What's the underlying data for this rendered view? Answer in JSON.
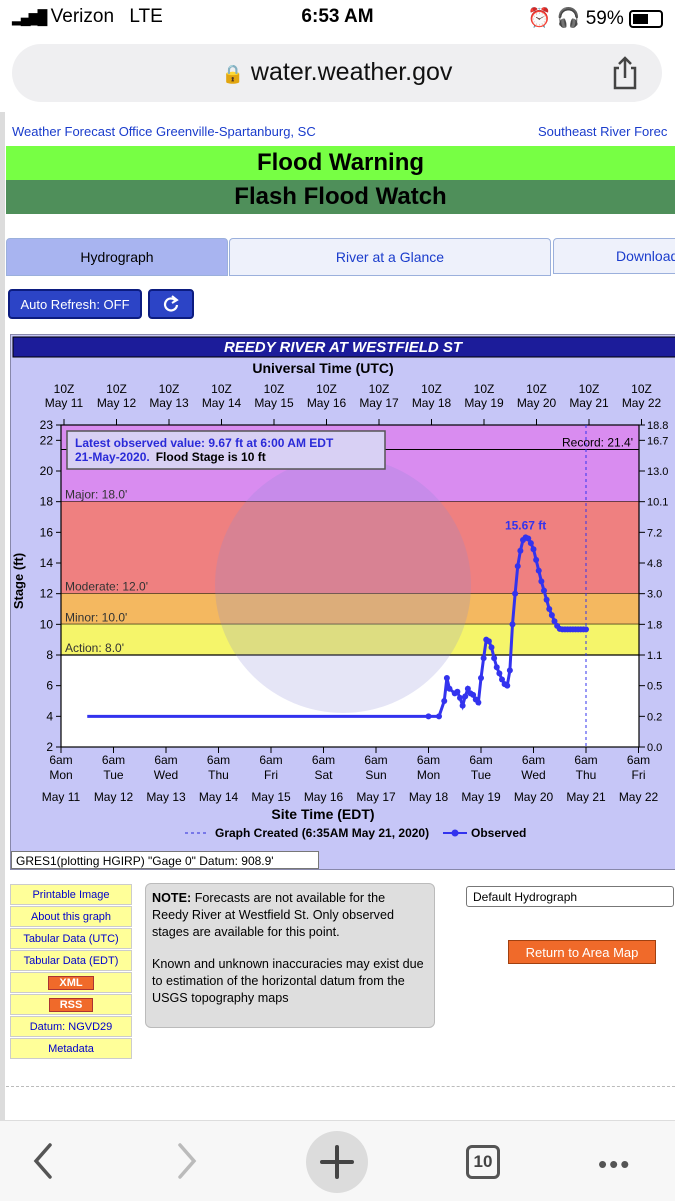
{
  "status_bar": {
    "carrier": "Verizon",
    "network": "LTE",
    "time": "6:53 AM",
    "battery": "59%"
  },
  "browser": {
    "url": "water.weather.gov",
    "tabs_count": "10"
  },
  "header": {
    "office_link": "Weather Forecast Office Greenville-Spartanburg, SC",
    "rfc_link": "Southeast River Forec"
  },
  "banners": [
    {
      "text": "Flood Warning",
      "color": "#77ff44"
    },
    {
      "text": "Flash Flood Watch",
      "color": "#4f8f5a"
    }
  ],
  "tabs": [
    {
      "label": "Hydrograph",
      "active": true
    },
    {
      "label": "River at a Glance",
      "active": false
    },
    {
      "label": "Download",
      "active": false
    }
  ],
  "controls": {
    "auto_refresh": "Auto Refresh: OFF"
  },
  "sidebar_links": [
    "Printable Image",
    "About this graph",
    "Tabular Data (UTC)",
    "Tabular Data (EDT)",
    "XML",
    "RSS",
    "Datum: NGVD29",
    "Metadata"
  ],
  "note": {
    "bold": "NOTE:",
    "p1": "Forecasts are not available for the Reedy River at Westfield St. Only observed stages are available for this point.",
    "p2": "Known and unknown inaccuracies may exist due to estimation of the horizontal datum from the USGS topography maps"
  },
  "dropdown": {
    "selected": "Default Hydrograph"
  },
  "return_button": "Return to Area Map",
  "gauge_info": "GRES1(plotting HGIRP) \"Gage 0\" Datum: 908.9'",
  "chart_data": {
    "type": "line",
    "title": "REEDY RIVER AT WESTFIELD ST",
    "top_axis_title": "Universal Time (UTC)",
    "bottom_axis_title": "Site Time (EDT)",
    "ylabel": "Stage (ft)",
    "ylim": [
      2,
      23
    ],
    "yticks": [
      2,
      4,
      6,
      8,
      10,
      12,
      14,
      16,
      18,
      20,
      22,
      23
    ],
    "right_ticks": [
      {
        "stage": 23,
        "label": "18.8"
      },
      {
        "stage": 22,
        "label": "16.7"
      },
      {
        "stage": 20,
        "label": "13.0"
      },
      {
        "stage": 18,
        "label": "10.1"
      },
      {
        "stage": 16,
        "label": "7.2"
      },
      {
        "stage": 14,
        "label": "4.8"
      },
      {
        "stage": 12,
        "label": "3.0"
      },
      {
        "stage": 10,
        "label": "1.8"
      },
      {
        "stage": 8,
        "label": "1.1"
      },
      {
        "stage": 6,
        "label": "0.5"
      },
      {
        "stage": 4,
        "label": "0.2"
      },
      {
        "stage": 2,
        "label": "0.0"
      }
    ],
    "top_ticks": [
      {
        "z": "10Z",
        "d": "May 11"
      },
      {
        "z": "10Z",
        "d": "May 12"
      },
      {
        "z": "10Z",
        "d": "May 13"
      },
      {
        "z": "10Z",
        "d": "May 14"
      },
      {
        "z": "10Z",
        "d": "May 15"
      },
      {
        "z": "10Z",
        "d": "May 16"
      },
      {
        "z": "10Z",
        "d": "May 17"
      },
      {
        "z": "10Z",
        "d": "May 18"
      },
      {
        "z": "10Z",
        "d": "May 19"
      },
      {
        "z": "10Z",
        "d": "May 20"
      },
      {
        "z": "10Z",
        "d": "May 21"
      },
      {
        "z": "10Z",
        "d": "May 22"
      }
    ],
    "bottom_ticks": [
      {
        "t": "6am",
        "w": "Mon",
        "d": "May 11"
      },
      {
        "t": "6am",
        "w": "Tue",
        "d": "May 12"
      },
      {
        "t": "6am",
        "w": "Wed",
        "d": "May 13"
      },
      {
        "t": "6am",
        "w": "Thu",
        "d": "May 14"
      },
      {
        "t": "6am",
        "w": "Fri",
        "d": "May 15"
      },
      {
        "t": "6am",
        "w": "Sat",
        "d": "May 16"
      },
      {
        "t": "6am",
        "w": "Sun",
        "d": "May 17"
      },
      {
        "t": "6am",
        "w": "Mon",
        "d": "May 18"
      },
      {
        "t": "6am",
        "w": "Tue",
        "d": "May 19"
      },
      {
        "t": "6am",
        "w": "Wed",
        "d": "May 20"
      },
      {
        "t": "6am",
        "w": "Thu",
        "d": "May 21"
      },
      {
        "t": "6am",
        "w": "Fri",
        "d": "May 22"
      }
    ],
    "bands": [
      {
        "label": "Major: 18.0'",
        "from": 18,
        "to": 23,
        "color": "#d98cf0"
      },
      {
        "label": "Moderate: 12.0'",
        "from": 12,
        "to": 18,
        "color": "#ef8080"
      },
      {
        "label": "Minor: 10.0'",
        "from": 10,
        "to": 12,
        "color": "#f4b860"
      },
      {
        "label": "Action: 8.0'",
        "from": 8,
        "to": 10,
        "color": "#f5f56a"
      }
    ],
    "record": {
      "label": "Record: 21.4'",
      "value": 21.4
    },
    "peak_label": "15.67 ft",
    "observed_box": {
      "line1": "Latest observed value: 9.67 ft at 6:00 AM EDT",
      "line2a": "21-May-2020.",
      "line2b": "Flood Stage is 10 ft"
    },
    "legend": {
      "created": "Graph Created (6:35AM May 21, 2020)",
      "observed": "Observed"
    },
    "series": [
      {
        "name": "Observed",
        "x_days": [
          0.5,
          1,
          2,
          3,
          4,
          5,
          6,
          7,
          7.2,
          7.3,
          7.35,
          7.4,
          7.5,
          7.55,
          7.6,
          7.65,
          7.7,
          7.75,
          7.8,
          7.85,
          7.9,
          7.95,
          8.0,
          8.05,
          8.1,
          8.15,
          8.2,
          8.25,
          8.3,
          8.35,
          8.4,
          8.45,
          8.5,
          8.55,
          8.6,
          8.65,
          8.7,
          8.75,
          8.8,
          8.85,
          8.9,
          8.95,
          9.0,
          9.05,
          9.1,
          9.15,
          9.2,
          9.25,
          9.3,
          9.35,
          9.4,
          9.45,
          9.5,
          9.55,
          9.6,
          9.65,
          9.7,
          9.75,
          9.8,
          9.85,
          9.9,
          9.95,
          10.0
        ],
        "values": [
          4,
          4,
          4,
          4,
          4,
          4,
          4,
          4,
          4,
          5.0,
          6.5,
          5.8,
          5.5,
          5.6,
          5.2,
          4.7,
          5.3,
          5.8,
          5.5,
          5.4,
          5.1,
          4.9,
          6.5,
          7.8,
          9.0,
          8.9,
          8.5,
          7.8,
          7.2,
          6.8,
          6.4,
          6.1,
          6.0,
          7.0,
          10.0,
          12.0,
          13.8,
          14.8,
          15.5,
          15.67,
          15.6,
          15.3,
          14.9,
          14.2,
          13.5,
          12.8,
          12.2,
          11.6,
          11.0,
          10.6,
          10.2,
          9.9,
          9.7,
          9.67,
          9.67,
          9.67,
          9.67,
          9.67,
          9.67,
          9.67,
          9.67,
          9.67,
          9.67
        ]
      }
    ]
  }
}
